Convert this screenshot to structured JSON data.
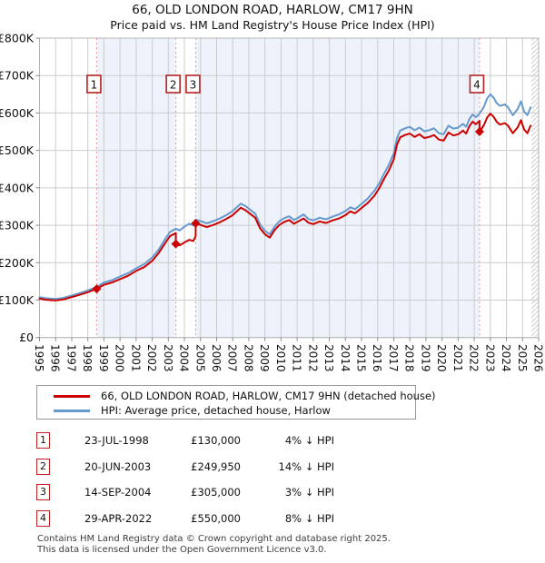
{
  "title": "66, OLD LONDON ROAD, HARLOW, CM17 9HN",
  "subtitle": "Price paid vs. HM Land Registry's House Price Index (HPI)",
  "chart_data": {
    "type": "line",
    "unit": "GBP thousands",
    "x_axis": {
      "min": 1995,
      "max": 2026,
      "tick_labels": [
        "1995",
        "1996",
        "1997",
        "1998",
        "1999",
        "2000",
        "2001",
        "2002",
        "2003",
        "2004",
        "2005",
        "2006",
        "2007",
        "2008",
        "2009",
        "2010",
        "2011",
        "2012",
        "2013",
        "2014",
        "2015",
        "2016",
        "2017",
        "2018",
        "2019",
        "2020",
        "2021",
        "2022",
        "2023",
        "2024",
        "2025",
        "2026"
      ]
    },
    "y_axis": {
      "min": 0,
      "max": 800,
      "tick_step": 100,
      "tick_labels": [
        "£0",
        "£100K",
        "£200K",
        "£300K",
        "£400K",
        "£500K",
        "£600K",
        "£700K",
        "£800K"
      ]
    },
    "grid": true,
    "colors": {
      "property": "#cc0000",
      "hpi": "#6699cc",
      "band": "#edf2fb",
      "gridline": "#cccccc",
      "border": "#b5b5b5",
      "sale_dash": "#f09595",
      "sale_box_border": "#b22222",
      "hatch": "#cccccc"
    },
    "shaded_spans": [
      [
        1998.55,
        2003.47
      ],
      [
        2004.7,
        2022.33
      ]
    ],
    "hatch_span": [
      2025.55,
      2026
    ],
    "sales": [
      {
        "n": "1",
        "x": 1998.55,
        "yK": 130
      },
      {
        "n": "2",
        "x": 2003.47,
        "yK": 250
      },
      {
        "n": "3",
        "x": 2004.7,
        "yK": 305
      },
      {
        "n": "4",
        "x": 2022.33,
        "yK": 550
      }
    ],
    "series": [
      {
        "name": "66, OLD LONDON ROAD, HARLOW, CM17 9HN (detached house)",
        "color": "#cc0000",
        "points": [
          [
            1995.0,
            104
          ],
          [
            1995.4,
            101
          ],
          [
            1996.0,
            99
          ],
          [
            1996.5,
            102
          ],
          [
            1997.0,
            108
          ],
          [
            1997.5,
            114
          ],
          [
            1998.0,
            121
          ],
          [
            1998.55,
            130
          ],
          [
            1999.0,
            141
          ],
          [
            1999.5,
            147
          ],
          [
            2000.0,
            156
          ],
          [
            2000.5,
            165
          ],
          [
            2001.0,
            178
          ],
          [
            2001.5,
            188
          ],
          [
            2002.0,
            205
          ],
          [
            2002.4,
            226
          ],
          [
            2002.8,
            252
          ],
          [
            2003.1,
            271
          ],
          [
            2003.47,
            279
          ],
          [
            2003.47,
            250
          ],
          [
            2003.7,
            246
          ],
          [
            2004.0,
            254
          ],
          [
            2004.3,
            261
          ],
          [
            2004.55,
            258
          ],
          [
            2004.7,
            271
          ],
          [
            2004.7,
            305
          ],
          [
            2005.0,
            301
          ],
          [
            2005.4,
            295
          ],
          [
            2005.8,
            301
          ],
          [
            2006.2,
            308
          ],
          [
            2006.6,
            317
          ],
          [
            2007.0,
            327
          ],
          [
            2007.3,
            339
          ],
          [
            2007.5,
            347
          ],
          [
            2007.8,
            340
          ],
          [
            2008.1,
            330
          ],
          [
            2008.4,
            320
          ],
          [
            2008.7,
            292
          ],
          [
            2009.0,
            276
          ],
          [
            2009.3,
            267
          ],
          [
            2009.6,
            287
          ],
          [
            2009.9,
            301
          ],
          [
            2010.2,
            309
          ],
          [
            2010.5,
            314
          ],
          [
            2010.8,
            304
          ],
          [
            2011.1,
            311
          ],
          [
            2011.4,
            318
          ],
          [
            2011.7,
            307
          ],
          [
            2012.0,
            303
          ],
          [
            2012.4,
            310
          ],
          [
            2012.8,
            306
          ],
          [
            2013.2,
            313
          ],
          [
            2013.6,
            318
          ],
          [
            2014.0,
            327
          ],
          [
            2014.3,
            337
          ],
          [
            2014.6,
            332
          ],
          [
            2015.0,
            346
          ],
          [
            2015.4,
            360
          ],
          [
            2015.8,
            379
          ],
          [
            2016.1,
            399
          ],
          [
            2016.4,
            424
          ],
          [
            2016.7,
            447
          ],
          [
            2017.0,
            476
          ],
          [
            2017.2,
            515
          ],
          [
            2017.4,
            535
          ],
          [
            2017.7,
            541
          ],
          [
            2018.0,
            545
          ],
          [
            2018.3,
            536
          ],
          [
            2018.6,
            543
          ],
          [
            2018.9,
            533
          ],
          [
            2019.2,
            536
          ],
          [
            2019.5,
            541
          ],
          [
            2019.8,
            529
          ],
          [
            2020.1,
            526
          ],
          [
            2020.4,
            548
          ],
          [
            2020.7,
            540
          ],
          [
            2021.0,
            543
          ],
          [
            2021.3,
            553
          ],
          [
            2021.5,
            545
          ],
          [
            2021.7,
            565
          ],
          [
            2021.9,
            577
          ],
          [
            2022.1,
            570
          ],
          [
            2022.33,
            579
          ],
          [
            2022.33,
            550
          ],
          [
            2022.6,
            567
          ],
          [
            2022.8,
            588
          ],
          [
            2023.0,
            598
          ],
          [
            2023.2,
            590
          ],
          [
            2023.4,
            576
          ],
          [
            2023.6,
            569
          ],
          [
            2023.9,
            573
          ],
          [
            2024.1,
            566
          ],
          [
            2024.4,
            546
          ],
          [
            2024.7,
            562
          ],
          [
            2024.9,
            581
          ],
          [
            2025.1,
            556
          ],
          [
            2025.3,
            546
          ],
          [
            2025.5,
            566
          ]
        ]
      },
      {
        "name": "HPI: Average price, detached house, Harlow",
        "color": "#6699cc",
        "points": [
          [
            1995.0,
            108
          ],
          [
            1995.4,
            105
          ],
          [
            1996.0,
            103
          ],
          [
            1996.5,
            106
          ],
          [
            1997.0,
            112
          ],
          [
            1997.5,
            119
          ],
          [
            1998.0,
            126
          ],
          [
            1998.55,
            135
          ],
          [
            1999.0,
            147
          ],
          [
            1999.5,
            153
          ],
          [
            2000.0,
            163
          ],
          [
            2000.5,
            172
          ],
          [
            2001.0,
            185
          ],
          [
            2001.5,
            196
          ],
          [
            2002.0,
            214
          ],
          [
            2002.4,
            235
          ],
          [
            2002.8,
            263
          ],
          [
            2003.1,
            282
          ],
          [
            2003.47,
            291
          ],
          [
            2003.7,
            286
          ],
          [
            2004.0,
            296
          ],
          [
            2004.3,
            304
          ],
          [
            2004.55,
            300
          ],
          [
            2004.7,
            315
          ],
          [
            2005.0,
            311
          ],
          [
            2005.4,
            305
          ],
          [
            2005.8,
            311
          ],
          [
            2006.2,
            318
          ],
          [
            2006.6,
            327
          ],
          [
            2007.0,
            338
          ],
          [
            2007.3,
            350
          ],
          [
            2007.5,
            358
          ],
          [
            2007.8,
            351
          ],
          [
            2008.1,
            341
          ],
          [
            2008.4,
            331
          ],
          [
            2008.7,
            302
          ],
          [
            2009.0,
            285
          ],
          [
            2009.3,
            276
          ],
          [
            2009.6,
            296
          ],
          [
            2009.9,
            311
          ],
          [
            2010.2,
            319
          ],
          [
            2010.5,
            324
          ],
          [
            2010.8,
            314
          ],
          [
            2011.1,
            321
          ],
          [
            2011.4,
            329
          ],
          [
            2011.7,
            317
          ],
          [
            2012.0,
            313
          ],
          [
            2012.4,
            320
          ],
          [
            2012.8,
            316
          ],
          [
            2013.2,
            323
          ],
          [
            2013.6,
            329
          ],
          [
            2014.0,
            338
          ],
          [
            2014.3,
            348
          ],
          [
            2014.6,
            343
          ],
          [
            2015.0,
            357
          ],
          [
            2015.4,
            372
          ],
          [
            2015.8,
            392
          ],
          [
            2016.1,
            412
          ],
          [
            2016.4,
            438
          ],
          [
            2016.7,
            462
          ],
          [
            2017.0,
            492
          ],
          [
            2017.2,
            532
          ],
          [
            2017.4,
            553
          ],
          [
            2017.7,
            559
          ],
          [
            2018.0,
            563
          ],
          [
            2018.3,
            554
          ],
          [
            2018.6,
            561
          ],
          [
            2018.9,
            551
          ],
          [
            2019.2,
            554
          ],
          [
            2019.5,
            559
          ],
          [
            2019.8,
            546
          ],
          [
            2020.1,
            543
          ],
          [
            2020.4,
            566
          ],
          [
            2020.7,
            558
          ],
          [
            2021.0,
            561
          ],
          [
            2021.3,
            571
          ],
          [
            2021.5,
            563
          ],
          [
            2021.7,
            584
          ],
          [
            2021.9,
            596
          ],
          [
            2022.1,
            589
          ],
          [
            2022.33,
            598
          ],
          [
            2022.6,
            616
          ],
          [
            2022.8,
            639
          ],
          [
            2023.0,
            650
          ],
          [
            2023.2,
            641
          ],
          [
            2023.4,
            626
          ],
          [
            2023.6,
            619
          ],
          [
            2023.9,
            623
          ],
          [
            2024.1,
            615
          ],
          [
            2024.4,
            594
          ],
          [
            2024.7,
            611
          ],
          [
            2024.9,
            631
          ],
          [
            2025.1,
            604
          ],
          [
            2025.3,
            594
          ],
          [
            2025.5,
            615
          ]
        ]
      }
    ]
  },
  "legend": {
    "items": [
      {
        "label": "66, OLD LONDON ROAD, HARLOW, CM17 9HN (detached house)",
        "color": "#cc0000"
      },
      {
        "label": "HPI: Average price, detached house, Harlow",
        "color": "#6699cc"
      }
    ]
  },
  "table": {
    "rows": [
      {
        "num": "1",
        "date": "23-JUL-1998",
        "price": "£130,000",
        "pct": "4% ↓ HPI"
      },
      {
        "num": "2",
        "date": "20-JUN-2003",
        "price": "£249,950",
        "pct": "14% ↓ HPI"
      },
      {
        "num": "3",
        "date": "14-SEP-2004",
        "price": "£305,000",
        "pct": "3% ↓ HPI"
      },
      {
        "num": "4",
        "date": "29-APR-2022",
        "price": "£550,000",
        "pct": "8% ↓ HPI"
      }
    ]
  },
  "footer": {
    "line1": "Contains HM Land Registry data © Crown copyright and database right 2025.",
    "line2": "This data is licensed under the Open Government Licence v3.0."
  }
}
